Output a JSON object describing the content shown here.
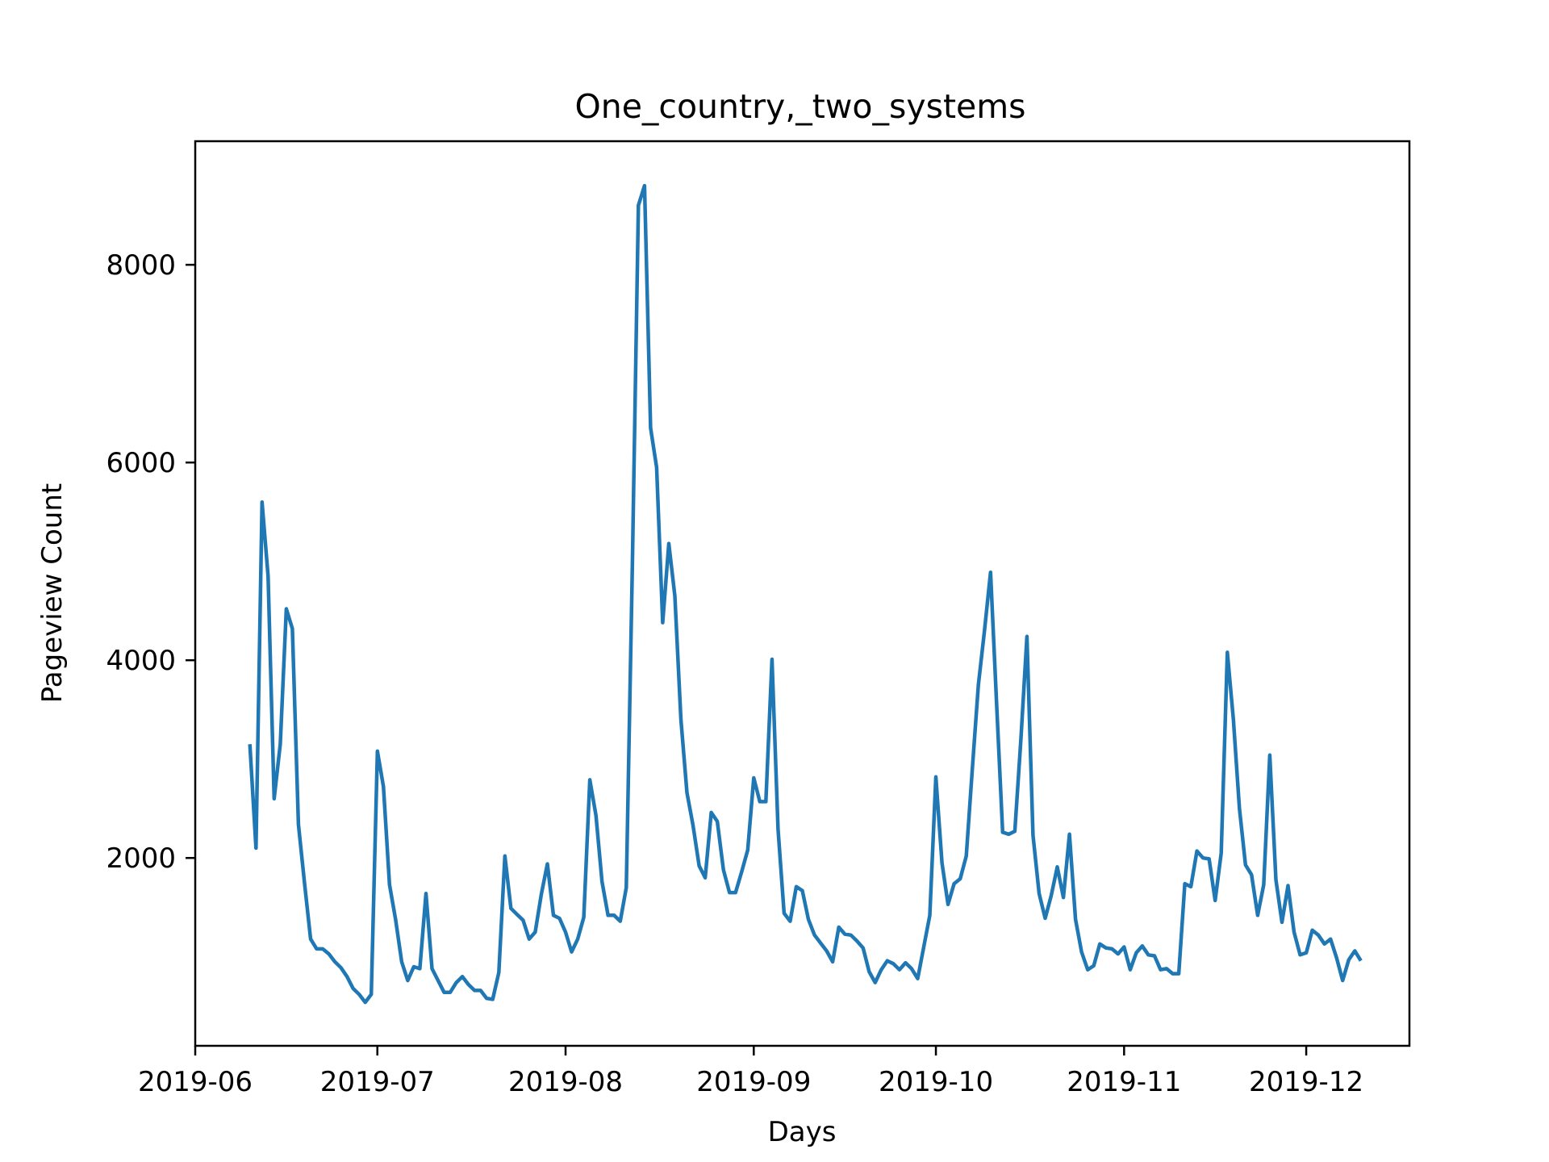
{
  "chart_data": {
    "type": "line",
    "title": "One_country,_two_systems",
    "xlabel": "Days",
    "ylabel": "Pageview Count",
    "x_ticks": [
      "2019-06",
      "2019-07",
      "2019-08",
      "2019-09",
      "2019-10",
      "2019-11",
      "2019-12"
    ],
    "y_ticks": [
      2000,
      4000,
      6000,
      8000
    ],
    "xlim": [
      "2019-06-01",
      "2019-12-18"
    ],
    "ylim": [
      100,
      9250
    ],
    "grid": false,
    "series": [
      {
        "color": "#1f77b4",
        "x": [
          "2019-06-10",
          "2019-06-11",
          "2019-06-12",
          "2019-06-13",
          "2019-06-14",
          "2019-06-15",
          "2019-06-16",
          "2019-06-17",
          "2019-06-18",
          "2019-06-19",
          "2019-06-20",
          "2019-06-21",
          "2019-06-22",
          "2019-06-23",
          "2019-06-24",
          "2019-06-25",
          "2019-06-26",
          "2019-06-27",
          "2019-06-28",
          "2019-06-29",
          "2019-06-30",
          "2019-07-01",
          "2019-07-02",
          "2019-07-03",
          "2019-07-04",
          "2019-07-05",
          "2019-07-06",
          "2019-07-07",
          "2019-07-08",
          "2019-07-09",
          "2019-07-10",
          "2019-07-11",
          "2019-07-12",
          "2019-07-13",
          "2019-07-14",
          "2019-07-15",
          "2019-07-16",
          "2019-07-17",
          "2019-07-18",
          "2019-07-19",
          "2019-07-20",
          "2019-07-21",
          "2019-07-22",
          "2019-07-23",
          "2019-07-24",
          "2019-07-25",
          "2019-07-26",
          "2019-07-27",
          "2019-07-28",
          "2019-07-29",
          "2019-07-30",
          "2019-07-31",
          "2019-08-01",
          "2019-08-02",
          "2019-08-03",
          "2019-08-04",
          "2019-08-05",
          "2019-08-06",
          "2019-08-07",
          "2019-08-08",
          "2019-08-09",
          "2019-08-10",
          "2019-08-11",
          "2019-08-12",
          "2019-08-13",
          "2019-08-14",
          "2019-08-15",
          "2019-08-16",
          "2019-08-17",
          "2019-08-18",
          "2019-08-19",
          "2019-08-20",
          "2019-08-21",
          "2019-08-22",
          "2019-08-23",
          "2019-08-24",
          "2019-08-25",
          "2019-08-26",
          "2019-08-27",
          "2019-08-28",
          "2019-08-29",
          "2019-08-30",
          "2019-08-31",
          "2019-09-01",
          "2019-09-02",
          "2019-09-03",
          "2019-09-04",
          "2019-09-05",
          "2019-09-06",
          "2019-09-07",
          "2019-09-08",
          "2019-09-09",
          "2019-09-10",
          "2019-09-11",
          "2019-09-12",
          "2019-09-13",
          "2019-09-14",
          "2019-09-15",
          "2019-09-16",
          "2019-09-17",
          "2019-09-18",
          "2019-09-19",
          "2019-09-20",
          "2019-09-21",
          "2019-09-22",
          "2019-09-23",
          "2019-09-24",
          "2019-09-25",
          "2019-09-26",
          "2019-09-27",
          "2019-09-28",
          "2019-09-29",
          "2019-09-30",
          "2019-10-01",
          "2019-10-02",
          "2019-10-03",
          "2019-10-04",
          "2019-10-05",
          "2019-10-06",
          "2019-10-07",
          "2019-10-08",
          "2019-10-09",
          "2019-10-10",
          "2019-10-11",
          "2019-10-12",
          "2019-10-13",
          "2019-10-14",
          "2019-10-15",
          "2019-10-16",
          "2019-10-17",
          "2019-10-18",
          "2019-10-19",
          "2019-10-20",
          "2019-10-21",
          "2019-10-22",
          "2019-10-23",
          "2019-10-24",
          "2019-10-25",
          "2019-10-26",
          "2019-10-27",
          "2019-10-28",
          "2019-10-29",
          "2019-10-30",
          "2019-10-31",
          "2019-11-01",
          "2019-11-02",
          "2019-11-03",
          "2019-11-04",
          "2019-11-05",
          "2019-11-06",
          "2019-11-07",
          "2019-11-08",
          "2019-11-09",
          "2019-11-10",
          "2019-11-11",
          "2019-11-12",
          "2019-11-13",
          "2019-11-14",
          "2019-11-15",
          "2019-11-16",
          "2019-11-17",
          "2019-11-18",
          "2019-11-19",
          "2019-11-20",
          "2019-11-21",
          "2019-11-22",
          "2019-11-23",
          "2019-11-24",
          "2019-11-25",
          "2019-11-26",
          "2019-11-27",
          "2019-11-28",
          "2019-11-29",
          "2019-11-30",
          "2019-12-01",
          "2019-12-02",
          "2019-12-03",
          "2019-12-04",
          "2019-12-05",
          "2019-12-06",
          "2019-12-07",
          "2019-12-08",
          "2019-12-09",
          "2019-12-10"
        ],
        "values": [
          3150,
          2100,
          5600,
          4850,
          2600,
          3150,
          4520,
          4320,
          2340,
          1750,
          1180,
          1080,
          1080,
          1030,
          950,
          890,
          800,
          680,
          620,
          540,
          620,
          3080,
          2720,
          1730,
          1380,
          950,
          760,
          900,
          880,
          1640,
          880,
          760,
          640,
          640,
          740,
          800,
          720,
          660,
          660,
          580,
          570,
          840,
          2020,
          1490,
          1430,
          1370,
          1180,
          1250,
          1630,
          1940,
          1420,
          1390,
          1250,
          1050,
          1180,
          1400,
          2790,
          2430,
          1760,
          1420,
          1420,
          1360,
          1700,
          4950,
          8600,
          8800,
          6350,
          5950,
          4380,
          5180,
          4650,
          3400,
          2660,
          2330,
          1920,
          1800,
          2460,
          2370,
          1880,
          1650,
          1650,
          1860,
          2080,
          2810,
          2570,
          2570,
          4010,
          2290,
          1440,
          1360,
          1710,
          1670,
          1380,
          1220,
          1140,
          1060,
          950,
          1300,
          1230,
          1220,
          1160,
          1090,
          850,
          740,
          870,
          960,
          930,
          870,
          940,
          880,
          780,
          1100,
          1420,
          2820,
          1950,
          1530,
          1740,
          1790,
          2020,
          2900,
          3750,
          4300,
          4890,
          3560,
          2260,
          2240,
          2270,
          3200,
          4240,
          2230,
          1640,
          1390,
          1620,
          1910,
          1600,
          2240,
          1380,
          1050,
          870,
          910,
          1130,
          1090,
          1080,
          1030,
          1100,
          870,
          1040,
          1110,
          1020,
          1010,
          870,
          880,
          830,
          830,
          1740,
          1710,
          2070,
          2000,
          1990,
          1570,
          2050,
          4080,
          3400,
          2500,
          1930,
          1830,
          1420,
          1730,
          3040,
          1780,
          1350,
          1720,
          1250,
          1020,
          1040,
          1270,
          1220,
          1130,
          1180,
          990,
          760,
          970,
          1060,
          960
        ]
      }
    ]
  }
}
